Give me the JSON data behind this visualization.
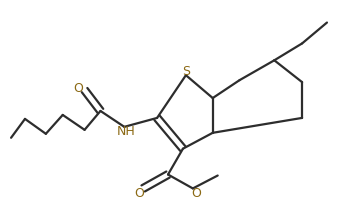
{
  "bond_color": "#2d2d2d",
  "heteroatom_color": "#8B6914",
  "background": "#ffffff",
  "line_width": 1.6,
  "figsize": [
    3.43,
    2.09
  ],
  "dpi": 100,
  "xlim": [
    0,
    343
  ],
  "ylim": [
    0,
    209
  ]
}
